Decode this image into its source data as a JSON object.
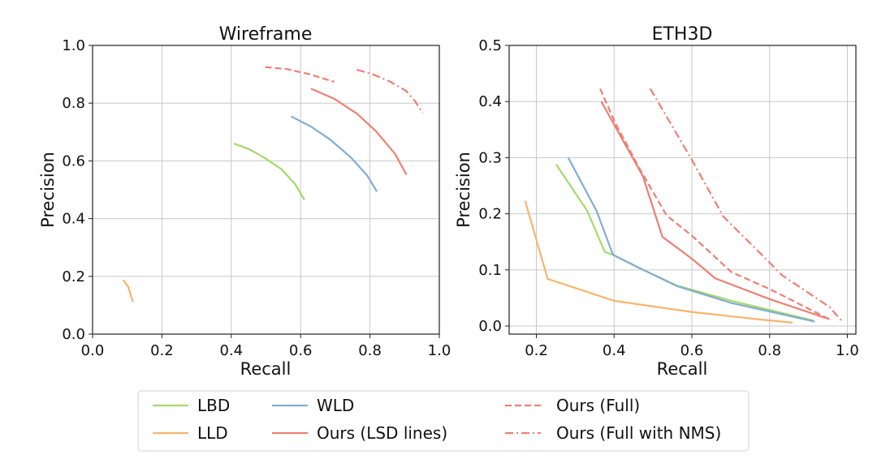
{
  "chart_data": [
    {
      "type": "line",
      "title": "Wireframe",
      "xlabel": "Recall",
      "ylabel": "Precision",
      "xlim": [
        0.0,
        1.0
      ],
      "ylim": [
        0.0,
        1.0
      ],
      "xticks": [
        "0.0",
        "0.2",
        "0.4",
        "0.6",
        "0.8",
        "1.0"
      ],
      "yticks": [
        "0.0",
        "0.2",
        "0.4",
        "0.6",
        "0.8",
        "1.0"
      ],
      "grid": true,
      "series": [
        {
          "name": "LBD",
          "x": [
            0.408,
            0.451,
            0.498,
            0.545,
            0.584,
            0.611
          ],
          "y": [
            0.66,
            0.641,
            0.609,
            0.571,
            0.52,
            0.465
          ]
        },
        {
          "name": "LLD",
          "x": [
            0.088,
            0.103,
            0.116
          ],
          "y": [
            0.187,
            0.164,
            0.112
          ]
        },
        {
          "name": "WLD",
          "x": [
            0.573,
            0.631,
            0.685,
            0.744,
            0.791,
            0.82
          ],
          "y": [
            0.754,
            0.718,
            0.674,
            0.613,
            0.551,
            0.494
          ]
        },
        {
          "name": "Ours (LSD lines)",
          "x": [
            0.63,
            0.697,
            0.763,
            0.818,
            0.873,
            0.905
          ],
          "y": [
            0.85,
            0.815,
            0.763,
            0.702,
            0.623,
            0.552
          ]
        },
        {
          "name": "Ours (Full)",
          "x": [
            0.498,
            0.56,
            0.623,
            0.697
          ],
          "y": [
            0.925,
            0.918,
            0.901,
            0.874
          ]
        },
        {
          "name": "Ours (Full with NMS)",
          "x": [
            0.762,
            0.81,
            0.857,
            0.904,
            0.931,
            0.952
          ],
          "y": [
            0.916,
            0.899,
            0.875,
            0.843,
            0.805,
            0.766
          ]
        }
      ]
    },
    {
      "type": "line",
      "title": "ETH3D",
      "xlabel": "Recall",
      "ylabel": "Precision",
      "xlim": [
        0.13,
        1.022
      ],
      "ylim": [
        -0.0144,
        0.5
      ],
      "xticks": [
        "0.2",
        "0.4",
        "0.6",
        "0.8",
        "1.0"
      ],
      "yticks": [
        "0.0",
        "0.1",
        "0.2",
        "0.3",
        "0.4",
        "0.5"
      ],
      "grid": true,
      "series": [
        {
          "name": "LBD",
          "x": [
            0.251,
            0.331,
            0.376,
            0.4,
            0.472,
            0.562,
            0.702,
            0.911
          ],
          "y": [
            0.288,
            0.205,
            0.132,
            0.126,
            0.101,
            0.072,
            0.045,
            0.01
          ]
        },
        {
          "name": "LLD",
          "x": [
            0.171,
            0.229,
            0.4,
            0.6,
            0.771,
            0.859
          ],
          "y": [
            0.223,
            0.084,
            0.045,
            0.025,
            0.012,
            0.006
          ]
        },
        {
          "name": "WLD",
          "x": [
            0.282,
            0.355,
            0.397,
            0.472,
            0.562,
            0.702,
            0.916
          ],
          "y": [
            0.3,
            0.205,
            0.127,
            0.101,
            0.071,
            0.041,
            0.008
          ]
        },
        {
          "name": "Ours (LSD lines)",
          "x": [
            0.367,
            0.474,
            0.524,
            0.6,
            0.66,
            0.8,
            0.954
          ],
          "y": [
            0.4,
            0.267,
            0.159,
            0.12,
            0.085,
            0.048,
            0.012
          ]
        },
        {
          "name": "Ours (Full)",
          "x": [
            0.364,
            0.402,
            0.465,
            0.535,
            0.6,
            0.702,
            0.8,
            0.954
          ],
          "y": [
            0.423,
            0.363,
            0.281,
            0.197,
            0.161,
            0.096,
            0.066,
            0.012
          ]
        },
        {
          "name": "Ours (Full with NMS)",
          "x": [
            0.493,
            0.6,
            0.681,
            0.8,
            0.831,
            0.954,
            0.984
          ],
          "y": [
            0.423,
            0.296,
            0.195,
            0.113,
            0.091,
            0.034,
            0.01
          ]
        }
      ]
    }
  ],
  "legend": {
    "placement": "bottom-center",
    "entries": [
      {
        "label": "LBD",
        "color": "#a6d96a",
        "dash": "solid"
      },
      {
        "label": "LLD",
        "color": "#f9b46e",
        "dash": "solid"
      },
      {
        "label": "WLD",
        "color": "#80aed2",
        "dash": "solid"
      },
      {
        "label": "Ours (LSD lines)",
        "color": "#ee7f74",
        "dash": "solid"
      },
      {
        "label": "Ours (Full)",
        "color": "#ee7f74",
        "dash": "dashed"
      },
      {
        "label": "Ours (Full with NMS)",
        "color": "#ee7f74",
        "dash": "dashdot"
      }
    ]
  }
}
